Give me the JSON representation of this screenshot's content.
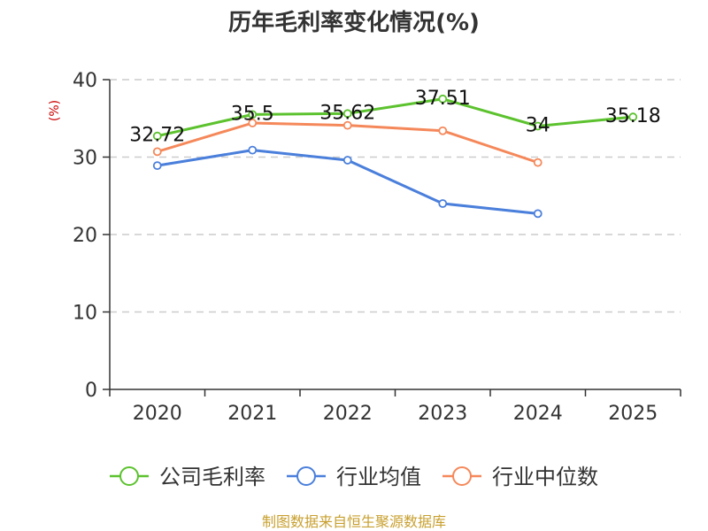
{
  "chart_data": {
    "type": "line",
    "title": "历年毛利率变化情况(%)",
    "ylabel": "(%)",
    "xlabel": "",
    "categories": [
      "2020",
      "2021",
      "2022",
      "2023",
      "2024",
      "2025"
    ],
    "ylim": [
      0,
      40
    ],
    "yticks": [
      0,
      10,
      20,
      30,
      40
    ],
    "grid": true,
    "legend_position": "bottom",
    "series": [
      {
        "name": "公司毛利率",
        "color": "#5cc22e",
        "values": [
          32.72,
          35.5,
          35.62,
          37.51,
          34,
          35.18
        ],
        "labels": [
          "32.72",
          "35.5",
          "35.62",
          "37.51",
          "34",
          "35.18"
        ]
      },
      {
        "name": "行业均值",
        "color": "#4a7fdb",
        "values": [
          28.9,
          30.9,
          29.6,
          24.0,
          22.7,
          null
        ]
      },
      {
        "name": "行业中位数",
        "color": "#f5885a",
        "values": [
          30.7,
          34.4,
          34.1,
          33.4,
          29.3,
          null
        ]
      }
    ]
  },
  "colors": {
    "ylabel": "#cc0000",
    "source": "#c8a030"
  },
  "source": "制图数据来自恒生聚源数据库"
}
